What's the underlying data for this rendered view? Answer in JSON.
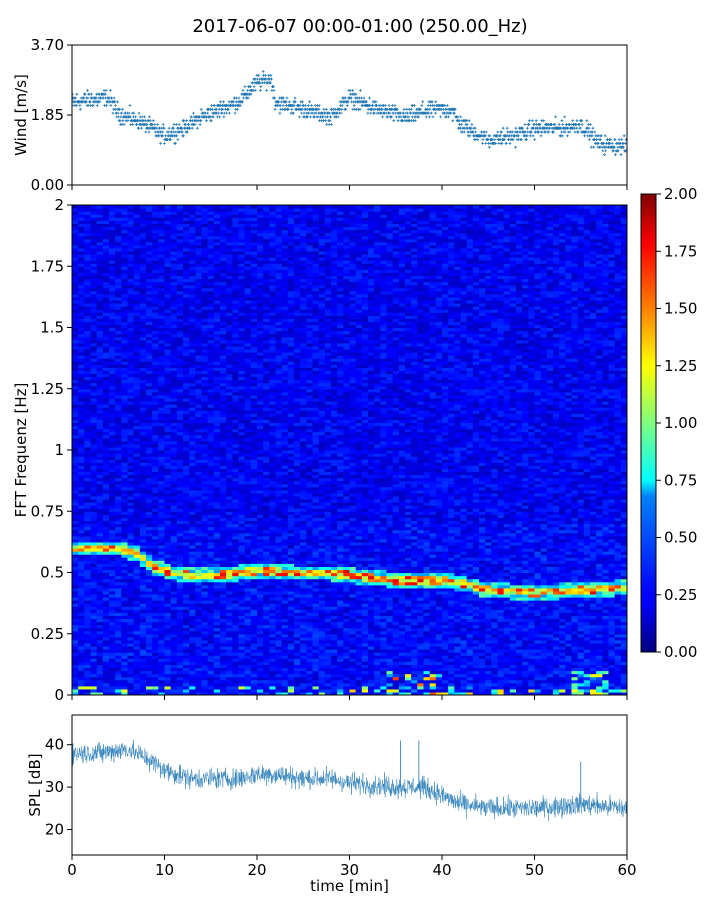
{
  "title": "2017-06-07 00:00-01:00 (250.00_Hz)",
  "colors": {
    "series": "#1f77b4",
    "axis": "#000000"
  },
  "chart_data": [
    {
      "id": "wind",
      "type": "scatter",
      "ylabel": "Wind [m/s]",
      "xlim": [
        0,
        60
      ],
      "ylim": [
        0,
        3.7
      ],
      "yticks": [
        "0.00",
        "1.85",
        "3.70"
      ],
      "trend": [
        {
          "t": 0,
          "v": 2.2
        },
        {
          "t": 4,
          "v": 2.3
        },
        {
          "t": 5,
          "v": 1.9
        },
        {
          "t": 8,
          "v": 1.6
        },
        {
          "t": 10,
          "v": 1.3
        },
        {
          "t": 12,
          "v": 1.5
        },
        {
          "t": 14,
          "v": 1.8
        },
        {
          "t": 16,
          "v": 2.0
        },
        {
          "t": 18,
          "v": 2.2
        },
        {
          "t": 20,
          "v": 2.7
        },
        {
          "t": 21.5,
          "v": 2.8
        },
        {
          "t": 22,
          "v": 2.2
        },
        {
          "t": 25,
          "v": 2.0
        },
        {
          "t": 28,
          "v": 1.8
        },
        {
          "t": 30,
          "v": 2.3
        },
        {
          "t": 33,
          "v": 2.0
        },
        {
          "t": 36,
          "v": 1.8
        },
        {
          "t": 39,
          "v": 2.0
        },
        {
          "t": 41,
          "v": 2.0
        },
        {
          "t": 42,
          "v": 1.6
        },
        {
          "t": 45,
          "v": 1.2
        },
        {
          "t": 48,
          "v": 1.3
        },
        {
          "t": 50,
          "v": 1.5
        },
        {
          "t": 53,
          "v": 1.5
        },
        {
          "t": 55,
          "v": 1.6
        },
        {
          "t": 57,
          "v": 1.1
        },
        {
          "t": 60,
          "v": 1.0
        }
      ]
    },
    {
      "id": "spectrogram",
      "type": "heatmap",
      "ylabel": "FFT Frequenz [Hz]",
      "xlim": [
        0,
        60
      ],
      "ylim": [
        0,
        2
      ],
      "yticks": [
        "0",
        "0.25",
        "0.5",
        "0.75",
        "1",
        "1.25",
        "1.5",
        "1.75",
        "2"
      ],
      "colorbar": {
        "min": 0,
        "max": 2,
        "ticks": [
          "0.00",
          "0.25",
          "0.50",
          "0.75",
          "1.00",
          "1.25",
          "1.50",
          "1.75",
          "2.00"
        ]
      },
      "dominant_line": [
        {
          "t": 0,
          "f": 0.6
        },
        {
          "t": 5,
          "f": 0.6
        },
        {
          "t": 7,
          "f": 0.58
        },
        {
          "t": 9,
          "f": 0.52
        },
        {
          "t": 11,
          "f": 0.5
        },
        {
          "t": 13,
          "f": 0.49
        },
        {
          "t": 16,
          "f": 0.49
        },
        {
          "t": 20,
          "f": 0.51
        },
        {
          "t": 24,
          "f": 0.5
        },
        {
          "t": 28,
          "f": 0.5
        },
        {
          "t": 30,
          "f": 0.49
        },
        {
          "t": 35,
          "f": 0.47
        },
        {
          "t": 40,
          "f": 0.47
        },
        {
          "t": 42,
          "f": 0.46
        },
        {
          "t": 45,
          "f": 0.43
        },
        {
          "t": 50,
          "f": 0.42
        },
        {
          "t": 55,
          "f": 0.43
        },
        {
          "t": 60,
          "f": 0.44
        }
      ]
    },
    {
      "id": "spl",
      "type": "line",
      "ylabel": "SPL [dB]",
      "xlabel": "time [min]",
      "xlim": [
        0,
        60
      ],
      "ylim": [
        14,
        47
      ],
      "yticks": [
        "20",
        "30",
        "40"
      ],
      "xticks": [
        "0",
        "10",
        "20",
        "30",
        "40",
        "50",
        "60"
      ],
      "trend": [
        {
          "t": 0,
          "v": 38
        },
        {
          "t": 3,
          "v": 38
        },
        {
          "t": 6,
          "v": 39
        },
        {
          "t": 8,
          "v": 37
        },
        {
          "t": 10,
          "v": 34
        },
        {
          "t": 13,
          "v": 32
        },
        {
          "t": 16,
          "v": 32
        },
        {
          "t": 18,
          "v": 32
        },
        {
          "t": 20,
          "v": 33
        },
        {
          "t": 22,
          "v": 33
        },
        {
          "t": 25,
          "v": 32
        },
        {
          "t": 28,
          "v": 32
        },
        {
          "t": 30,
          "v": 31
        },
        {
          "t": 35,
          "v": 30
        },
        {
          "t": 38,
          "v": 30
        },
        {
          "t": 40,
          "v": 28
        },
        {
          "t": 42,
          "v": 26
        },
        {
          "t": 45,
          "v": 25
        },
        {
          "t": 50,
          "v": 25
        },
        {
          "t": 55,
          "v": 26
        },
        {
          "t": 60,
          "v": 25
        }
      ]
    }
  ]
}
